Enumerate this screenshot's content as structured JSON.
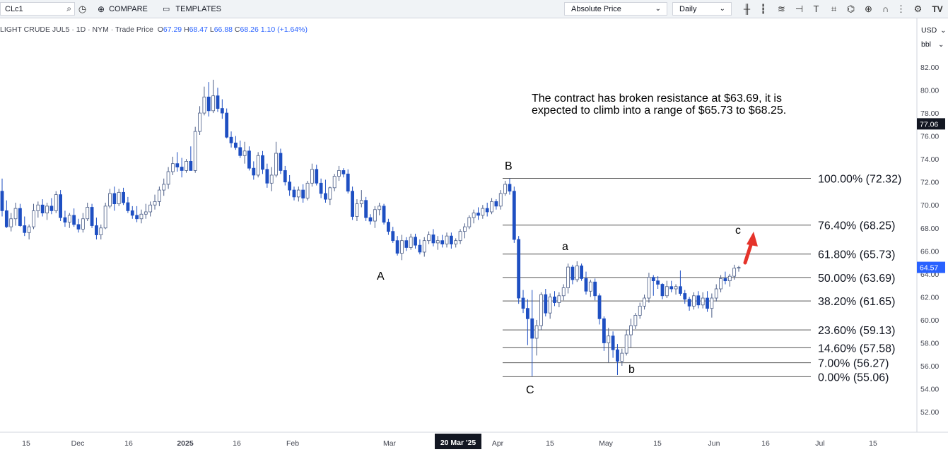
{
  "toolbar": {
    "symbol": "CLc1",
    "compare_label": "COMPARE",
    "templates_label": "TEMPLATES",
    "price_mode": "Absolute Price",
    "interval": "Daily",
    "logo_text": "TV"
  },
  "legend": {
    "title": "LIGHT CRUDE JUL5 · 1D · NYM · Trade Price",
    "o_label": "O",
    "o": "67.29",
    "h_label": "H",
    "h": "68.47",
    "l_label": "L",
    "l": "66.88",
    "c_label": "C",
    "c": "68.26",
    "change": "1.10 (+1.64%)"
  },
  "axis": {
    "currency": "USD",
    "unit": "bbl"
  },
  "note": "The contract has broken resistance at $63.69, it is expected to climb into a range of $65.73 to $68.25.",
  "colors": {
    "down": "#1e4fc2",
    "up": "#ffffff",
    "up_stroke": "#4a5c86",
    "arrow": "#e5332a",
    "price_badge": "#2962ff",
    "crosshair_badge": "#131722"
  },
  "chart_data": {
    "type": "candlestick",
    "y_range": [
      51.5,
      84
    ],
    "y_ticks": [
      "82.00",
      "80.00",
      "78.00",
      "76.00",
      "74.00",
      "72.00",
      "70.00",
      "68.00",
      "66.00",
      "64.00",
      "62.00",
      "60.00",
      "58.00",
      "56.00",
      "54.00",
      "52.00"
    ],
    "x_labels": [
      "15",
      "Dec",
      "16",
      "2025",
      "16",
      "Feb",
      "Mar",
      "20 Mar '25",
      "Apr",
      "15",
      "May",
      "15",
      "Jun",
      "16",
      "Jul",
      "15"
    ],
    "crosshair_x_label": "20 Mar '25",
    "crosshair_price": "77.06",
    "last_price": "64.57",
    "fibonacci": [
      {
        "label": "100.00% (72.32)",
        "value": 72.32
      },
      {
        "label": "76.40% (68.25)",
        "value": 68.25
      },
      {
        "label": "61.80% (65.73)",
        "value": 65.73
      },
      {
        "label": "50.00% (63.69)",
        "value": 63.69
      },
      {
        "label": "38.20% (61.65)",
        "value": 61.65
      },
      {
        "label": "23.60% (59.13)",
        "value": 59.13
      },
      {
        "label": "14.60% (57.58)",
        "value": 57.58
      },
      {
        "label": "7.00% (56.27)",
        "value": 56.27
      },
      {
        "label": "0.00% (55.06)",
        "value": 55.06
      }
    ],
    "wave_labels": [
      "A",
      "B",
      "C",
      "a",
      "b",
      "c"
    ],
    "candles": [
      [
        71.2,
        72.3,
        69.0,
        69.5
      ],
      [
        69.5,
        70.4,
        68.0,
        68.1
      ],
      [
        68.1,
        69.3,
        67.7,
        68.8
      ],
      [
        68.8,
        70.2,
        68.2,
        69.7
      ],
      [
        69.7,
        70.1,
        68.1,
        68.2
      ],
      [
        68.2,
        69.0,
        67.3,
        67.6
      ],
      [
        67.6,
        68.3,
        67.0,
        68.1
      ],
      [
        68.1,
        70.1,
        67.9,
        69.5
      ],
      [
        69.5,
        70.3,
        68.9,
        70.0
      ],
      [
        70.0,
        70.5,
        69.0,
        69.3
      ],
      [
        69.3,
        70.2,
        68.7,
        69.9
      ],
      [
        69.9,
        70.6,
        69.2,
        69.5
      ],
      [
        69.5,
        71.2,
        69.3,
        70.9
      ],
      [
        70.9,
        71.3,
        68.6,
        68.9
      ],
      [
        68.9,
        69.5,
        68.1,
        68.5
      ],
      [
        68.5,
        69.3,
        68.0,
        69.1
      ],
      [
        69.1,
        69.7,
        68.1,
        68.3
      ],
      [
        68.3,
        68.8,
        67.6,
        67.9
      ],
      [
        67.9,
        69.3,
        67.6,
        68.8
      ],
      [
        68.8,
        70.2,
        68.6,
        69.8
      ],
      [
        69.8,
        70.1,
        68.0,
        68.2
      ],
      [
        68.2,
        68.9,
        67.0,
        67.4
      ],
      [
        67.4,
        68.3,
        67.0,
        68.0
      ],
      [
        68.0,
        70.2,
        67.9,
        69.9
      ],
      [
        69.9,
        71.4,
        69.7,
        71.0
      ],
      [
        71.0,
        71.6,
        69.5,
        70.1
      ],
      [
        70.1,
        71.4,
        69.9,
        71.1
      ],
      [
        71.1,
        71.5,
        70.0,
        70.2
      ],
      [
        70.2,
        70.7,
        69.3,
        69.5
      ],
      [
        69.5,
        69.9,
        68.8,
        69.1
      ],
      [
        69.1,
        69.9,
        68.5,
        68.8
      ],
      [
        68.8,
        69.6,
        68.4,
        69.2
      ],
      [
        69.2,
        70.1,
        68.8,
        69.4
      ],
      [
        69.4,
        70.3,
        69.0,
        70.0
      ],
      [
        70.0,
        70.9,
        69.6,
        70.3
      ],
      [
        70.3,
        71.6,
        69.9,
        71.3
      ],
      [
        71.3,
        72.3,
        70.8,
        71.8
      ],
      [
        71.8,
        73.3,
        71.4,
        72.9
      ],
      [
        72.9,
        74.2,
        72.6,
        73.6
      ],
      [
        73.6,
        74.6,
        72.9,
        73.3
      ],
      [
        73.3,
        74.1,
        72.4,
        73.0
      ],
      [
        73.0,
        74.0,
        72.8,
        73.8
      ],
      [
        73.8,
        75.1,
        73.1,
        73.0
      ],
      [
        73.0,
        76.8,
        72.8,
        76.4
      ],
      [
        76.4,
        78.6,
        76.1,
        78.0
      ],
      [
        78.0,
        80.3,
        77.8,
        79.4
      ],
      [
        79.4,
        80.7,
        77.7,
        78.2
      ],
      [
        78.2,
        80.9,
        78.0,
        79.5
      ],
      [
        79.5,
        80.2,
        78.1,
        78.4
      ],
      [
        78.4,
        79.2,
        77.5,
        78.0
      ],
      [
        78.0,
        78.4,
        75.8,
        75.9
      ],
      [
        75.9,
        76.4,
        75.0,
        75.4
      ],
      [
        75.4,
        76.0,
        74.8,
        75.0
      ],
      [
        75.0,
        75.6,
        74.1,
        74.3
      ],
      [
        74.3,
        75.5,
        73.6,
        74.7
      ],
      [
        74.7,
        75.1,
        73.0,
        73.2
      ],
      [
        73.2,
        73.8,
        72.2,
        72.6
      ],
      [
        72.6,
        74.6,
        72.4,
        74.3
      ],
      [
        74.3,
        74.7,
        72.7,
        73.1
      ],
      [
        73.1,
        73.6,
        71.5,
        71.9
      ],
      [
        71.9,
        73.3,
        71.2,
        72.6
      ],
      [
        72.6,
        75.5,
        72.4,
        74.5
      ],
      [
        74.5,
        74.9,
        72.7,
        73.0
      ],
      [
        73.0,
        73.4,
        71.7,
        72.0
      ],
      [
        72.0,
        72.6,
        70.8,
        71.3
      ],
      [
        71.3,
        71.6,
        70.4,
        70.7
      ],
      [
        70.7,
        71.6,
        70.3,
        71.3
      ],
      [
        71.3,
        71.8,
        70.2,
        70.6
      ],
      [
        70.6,
        72.1,
        70.4,
        71.9
      ],
      [
        71.9,
        73.6,
        71.6,
        73.1
      ],
      [
        73.1,
        73.5,
        71.7,
        71.9
      ],
      [
        71.9,
        72.3,
        70.6,
        71.0
      ],
      [
        71.0,
        72.2,
        70.2,
        70.5
      ],
      [
        70.5,
        71.6,
        70.0,
        71.5
      ],
      [
        71.5,
        72.7,
        71.2,
        72.5
      ],
      [
        72.5,
        73.4,
        72.1,
        73.0
      ],
      [
        73.0,
        73.2,
        72.4,
        72.7
      ],
      [
        72.7,
        73.1,
        71.0,
        71.2
      ],
      [
        71.2,
        71.6,
        68.7,
        69.0
      ],
      [
        69.0,
        70.5,
        68.6,
        70.1
      ],
      [
        70.1,
        71.3,
        69.8,
        70.4
      ],
      [
        70.4,
        70.7,
        68.6,
        68.9
      ],
      [
        68.9,
        69.2,
        68.3,
        68.6
      ],
      [
        68.6,
        69.9,
        68.0,
        69.6
      ],
      [
        69.6,
        70.2,
        69.1,
        69.9
      ],
      [
        69.9,
        70.1,
        68.3,
        68.5
      ],
      [
        68.5,
        68.8,
        67.4,
        67.7
      ],
      [
        67.7,
        68.1,
        66.7,
        66.9
      ],
      [
        66.9,
        67.3,
        65.6,
        65.8
      ],
      [
        65.8,
        67.4,
        65.2,
        66.9
      ],
      [
        66.9,
        67.2,
        66.0,
        66.3
      ],
      [
        66.3,
        67.5,
        66.1,
        67.2
      ],
      [
        67.2,
        67.5,
        66.2,
        66.5
      ],
      [
        66.5,
        67.0,
        65.7,
        65.9
      ],
      [
        65.9,
        67.2,
        65.5,
        66.9
      ],
      [
        66.9,
        67.7,
        66.6,
        67.4
      ],
      [
        67.4,
        67.9,
        66.4,
        66.7
      ],
      [
        66.7,
        67.3,
        66.1,
        66.9
      ],
      [
        66.9,
        67.4,
        66.3,
        66.6
      ],
      [
        66.6,
        67.6,
        66.3,
        67.3
      ],
      [
        67.3,
        67.6,
        66.2,
        66.6
      ],
      [
        66.6,
        67.1,
        66.3,
        66.9
      ],
      [
        66.9,
        67.9,
        66.6,
        67.7
      ],
      [
        67.7,
        68.4,
        67.1,
        68.1
      ],
      [
        68.1,
        69.1,
        67.9,
        68.9
      ],
      [
        68.9,
        69.6,
        68.4,
        69.3
      ],
      [
        69.3,
        69.8,
        68.7,
        69.1
      ],
      [
        69.1,
        70.0,
        68.8,
        69.7
      ],
      [
        69.7,
        70.2,
        69.0,
        69.4
      ],
      [
        69.4,
        70.6,
        69.2,
        70.3
      ],
      [
        70.3,
        70.5,
        69.6,
        69.9
      ],
      [
        69.9,
        71.3,
        69.6,
        71.0
      ],
      [
        71.0,
        72.1,
        70.8,
        71.8
      ],
      [
        71.8,
        72.3,
        70.9,
        71.2
      ],
      [
        71.2,
        71.6,
        66.7,
        67.0
      ],
      [
        67.0,
        67.3,
        61.4,
        61.9
      ],
      [
        61.9,
        62.6,
        60.6,
        61.0
      ],
      [
        61.0,
        61.8,
        57.8,
        60.1
      ],
      [
        60.1,
        62.6,
        55.1,
        58.4
      ],
      [
        58.4,
        60.0,
        56.9,
        59.5
      ],
      [
        59.5,
        62.4,
        59.1,
        62.2
      ],
      [
        62.2,
        62.7,
        60.3,
        60.6
      ],
      [
        60.6,
        62.3,
        60.1,
        62.0
      ],
      [
        62.0,
        62.5,
        61.2,
        61.5
      ],
      [
        61.5,
        62.4,
        61.1,
        62.1
      ],
      [
        62.1,
        63.1,
        61.7,
        62.8
      ],
      [
        62.8,
        64.9,
        62.3,
        64.6
      ],
      [
        64.6,
        64.8,
        63.1,
        63.5
      ],
      [
        63.5,
        65.1,
        63.3,
        64.7
      ],
      [
        64.7,
        64.9,
        63.4,
        63.6
      ],
      [
        63.6,
        64.2,
        62.2,
        62.5
      ],
      [
        62.5,
        63.5,
        62.0,
        63.3
      ],
      [
        63.3,
        63.6,
        61.7,
        62.1
      ],
      [
        62.1,
        62.3,
        59.6,
        60.1
      ],
      [
        60.1,
        60.3,
        57.3,
        58.0
      ],
      [
        58.0,
        59.3,
        56.3,
        58.6
      ],
      [
        58.6,
        59.0,
        56.7,
        57.4
      ],
      [
        57.4,
        57.9,
        55.2,
        56.4
      ],
      [
        56.4,
        57.5,
        56.0,
        57.1
      ],
      [
        57.1,
        59.1,
        56.9,
        58.7
      ],
      [
        58.7,
        60.1,
        57.6,
        59.5
      ],
      [
        59.5,
        60.6,
        59.2,
        60.4
      ],
      [
        60.4,
        61.5,
        60.1,
        61.2
      ],
      [
        61.2,
        62.2,
        60.9,
        61.9
      ],
      [
        61.9,
        64.1,
        61.5,
        63.7
      ],
      [
        63.7,
        63.9,
        62.1,
        63.4
      ],
      [
        63.4,
        63.8,
        62.7,
        63.1
      ],
      [
        63.1,
        63.2,
        61.8,
        62.1
      ],
      [
        62.1,
        63.4,
        61.9,
        62.9
      ],
      [
        62.9,
        63.4,
        62.4,
        62.7
      ],
      [
        62.7,
        63.1,
        62.2,
        62.9
      ],
      [
        62.9,
        64.3,
        62.1,
        62.3
      ],
      [
        62.3,
        62.6,
        61.4,
        61.8
      ],
      [
        61.8,
        62.0,
        60.8,
        61.2
      ],
      [
        61.2,
        62.4,
        60.9,
        62.1
      ],
      [
        62.1,
        62.5,
        61.0,
        61.3
      ],
      [
        61.3,
        62.4,
        61.0,
        61.9
      ],
      [
        61.9,
        62.5,
        60.7,
        61.0
      ],
      [
        61.0,
        62.3,
        60.2,
        61.9
      ],
      [
        61.9,
        63.1,
        61.6,
        62.7
      ],
      [
        62.7,
        63.9,
        62.4,
        63.6
      ],
      [
        63.6,
        64.2,
        63.1,
        63.4
      ],
      [
        63.4,
        64.0,
        62.9,
        63.8
      ],
      [
        63.8,
        64.8,
        63.5,
        64.5
      ],
      [
        64.5,
        64.7,
        64.2,
        64.57
      ]
    ]
  }
}
